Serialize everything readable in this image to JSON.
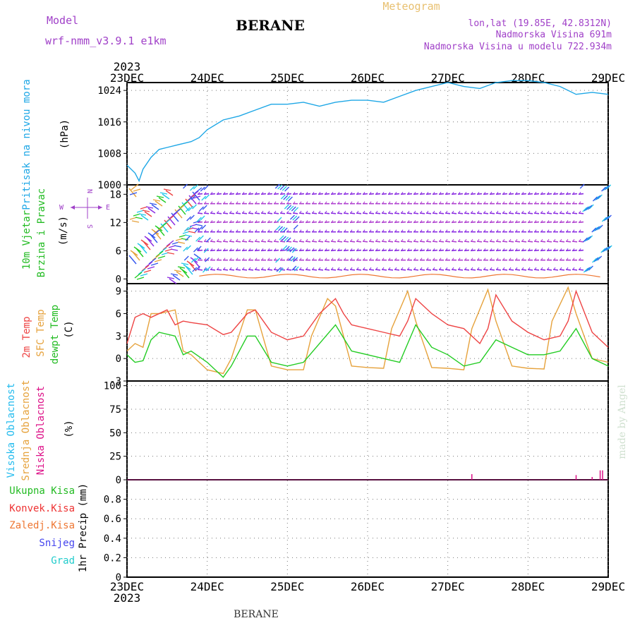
{
  "header": {
    "model_label": "Model",
    "model_name": "wrf-nmm_v3.9.1 e1km",
    "station": "BERANE",
    "product": "Meteogram",
    "lonlat": "lon,lat (19.85E, 42.8312N)",
    "elevation": "Nadmorska Visina 691m",
    "model_elevation": "Nadmorska Visina u modelu 722.934m"
  },
  "footer": {
    "station": "BERANE",
    "credit": "made by Angel"
  },
  "time_axis": {
    "year_top": "2023",
    "year_bottom": "2023",
    "labels": [
      "23DEC",
      "24DEC",
      "25DEC",
      "26DEC",
      "27DEC",
      "28DEC",
      "29DEC"
    ]
  },
  "colors": {
    "pressure": "#1ea7e6",
    "temp2m": "#ee4444",
    "sfc_temp": "#e6a23c",
    "dewpoint": "#22cc22",
    "wind_purple": "#8a2be2",
    "wind_cyan": "#22c8e8",
    "wind_blue": "#3355ee",
    "cloud_high": "#22bbee",
    "cloud_mid": "#e6a23c",
    "cloud_low": "#dd1188",
    "precip_total": "#22bb22",
    "precip_conv": "#ee3333",
    "precip_frozen": "#ee7733",
    "snow": "#4444ee",
    "hail": "#22cccc",
    "title_color": "#e8c070",
    "meta_color": "#a040c8"
  },
  "chart_data": [
    {
      "type": "line",
      "title": "",
      "ylabel_lines": [
        "Pritisak na nivou mora",
        "(hPa)"
      ],
      "yticks": [
        "1000",
        "1008",
        "1016",
        "1024"
      ],
      "ylim": [
        1000,
        1026
      ],
      "grid": true,
      "series": [
        {
          "values_x_days": [
            0,
            0.1,
            0.15,
            0.2,
            0.3,
            0.4,
            0.5,
            0.6,
            0.7,
            0.8,
            0.9,
            1.0,
            1.2,
            1.4,
            1.6,
            1.8,
            2.0,
            2.2,
            2.4,
            2.6,
            2.8,
            3.0,
            3.2,
            3.4,
            3.6,
            3.8,
            4.0,
            4.2,
            4.4,
            4.6,
            4.8,
            5.0,
            5.2,
            5.4,
            5.6,
            5.8,
            6.0
          ],
          "values": [
            1005,
            1003,
            1001,
            1004,
            1007,
            1009,
            1009.5,
            1010,
            1010.5,
            1011,
            1012,
            1014,
            1016.5,
            1017.5,
            1019,
            1020.5,
            1020.5,
            1021,
            1020,
            1021,
            1021.5,
            1021.5,
            1021,
            1022.5,
            1024,
            1025,
            1026,
            1025,
            1024.5,
            1026,
            1026.5,
            1026.5,
            1026,
            1025,
            1023,
            1023.5,
            1023
          ]
        }
      ]
    },
    {
      "type": "line",
      "title": "",
      "ylabel_lines": [
        "10m Vjetar",
        "Brzina i Pravac",
        "(m/s)"
      ],
      "yticks": [
        "0",
        "6",
        "12",
        "18"
      ],
      "ylim": [
        -1,
        20
      ],
      "grid": true,
      "compass": {
        "n": "N",
        "s": "S",
        "w": "W",
        "e": "E"
      },
      "barb_levels": [
        18,
        16,
        14,
        12,
        10,
        8,
        6,
        4,
        2
      ]
    },
    {
      "type": "line",
      "title": "",
      "ylabel_lines": [
        "2m Temp",
        "SFC Temp",
        "dewpt Temp",
        "(C)"
      ],
      "yticks": [
        "-3",
        "0",
        "3",
        "6",
        "9"
      ],
      "ylim": [
        -3,
        10
      ],
      "grid": true,
      "series": [
        {
          "name": "2m Temp",
          "values_x_days": [
            0,
            0.1,
            0.2,
            0.3,
            0.5,
            0.6,
            0.7,
            0.8,
            1.0,
            1.2,
            1.3,
            1.5,
            1.6,
            1.8,
            2.0,
            2.2,
            2.4,
            2.6,
            2.7,
            2.8,
            3.0,
            3.2,
            3.4,
            3.5,
            3.6,
            3.8,
            4.0,
            4.2,
            4.4,
            4.5,
            4.6,
            4.8,
            5.0,
            5.2,
            5.4,
            5.5,
            5.6,
            5.8,
            6.0
          ],
          "values": [
            2,
            5.5,
            6,
            5.5,
            6.5,
            4.5,
            5,
            4.8,
            4.5,
            3.2,
            3.5,
            6,
            6.5,
            3.5,
            2.5,
            3,
            6,
            8,
            6,
            4.5,
            4,
            3.5,
            3,
            5,
            8,
            6,
            4.5,
            4,
            2,
            4,
            8.5,
            5,
            3.5,
            2.5,
            3,
            5,
            9,
            3.5,
            1.5
          ]
        },
        {
          "name": "SFC Temp",
          "values_x_days": [
            0,
            0.1,
            0.2,
            0.3,
            0.4,
            0.6,
            0.7,
            0.8,
            1.0,
            1.2,
            1.3,
            1.5,
            1.6,
            1.8,
            2.0,
            2.2,
            2.3,
            2.5,
            2.6,
            2.8,
            3.0,
            3.2,
            3.3,
            3.5,
            3.6,
            3.8,
            4.0,
            4.2,
            4.3,
            4.5,
            4.6,
            4.8,
            5.0,
            5.2,
            5.3,
            5.5,
            5.6,
            5.8,
            6.0
          ],
          "values": [
            1,
            2,
            1.5,
            6,
            6,
            6.5,
            1,
            0.5,
            -1.5,
            -2,
            0,
            6.5,
            6.5,
            -1,
            -1.5,
            -1.5,
            3,
            8,
            7,
            -1,
            -1.2,
            -1.3,
            4,
            9,
            5,
            -1.2,
            -1.3,
            -1.5,
            4,
            9.2,
            5,
            -1,
            -1.3,
            -1.4,
            5,
            9.5,
            6,
            0,
            -0.5
          ]
        },
        {
          "name": "dewpt Temp",
          "values_x_days": [
            0,
            0.1,
            0.2,
            0.3,
            0.4,
            0.6,
            0.7,
            0.8,
            1.0,
            1.2,
            1.3,
            1.5,
            1.6,
            1.8,
            2.0,
            2.2,
            2.4,
            2.6,
            2.8,
            3.0,
            3.2,
            3.4,
            3.6,
            3.8,
            4.0,
            4.2,
            4.4,
            4.6,
            4.8,
            5.0,
            5.2,
            5.4,
            5.6,
            5.8,
            6.0
          ],
          "values": [
            0.5,
            -0.5,
            -0.3,
            2.5,
            3.5,
            3,
            0.5,
            1,
            -0.5,
            -2.5,
            -1,
            3,
            3,
            -0.5,
            -1,
            -0.5,
            2,
            4.5,
            1,
            0.5,
            0,
            -0.5,
            4.5,
            1.5,
            0.5,
            -1,
            -0.5,
            2.5,
            1.5,
            0.5,
            0.5,
            1,
            4,
            0,
            -1
          ]
        }
      ]
    },
    {
      "type": "bar",
      "title": "",
      "ylabel_lines": [
        "Visoka Oblacnost",
        "Srednja Oblacnost",
        "Niska Oblacnost",
        "(%)"
      ],
      "yticks": [
        "0",
        "25",
        "50",
        "75",
        "100"
      ],
      "ylim": [
        0,
        105
      ],
      "grid": true,
      "series": [
        {
          "name": "Niska Oblacnost",
          "values_x_days": [
            4.3,
            5.6,
            5.8,
            5.9,
            5.93
          ],
          "values": [
            6,
            5,
            3,
            10,
            10
          ]
        }
      ]
    },
    {
      "type": "bar",
      "title": "",
      "ylabel_lines": [
        "1hr Precip (mm)"
      ],
      "legend": [
        "Ukupna Kisa",
        "Konvek.Kisa",
        "Zaledj.Kisa",
        "Snijeg",
        "Grad"
      ],
      "yticks": [
        "0",
        "0.2",
        "0.4",
        "0.6",
        "0.8"
      ],
      "ylim": [
        0,
        1.0
      ],
      "grid": true,
      "series": []
    }
  ]
}
